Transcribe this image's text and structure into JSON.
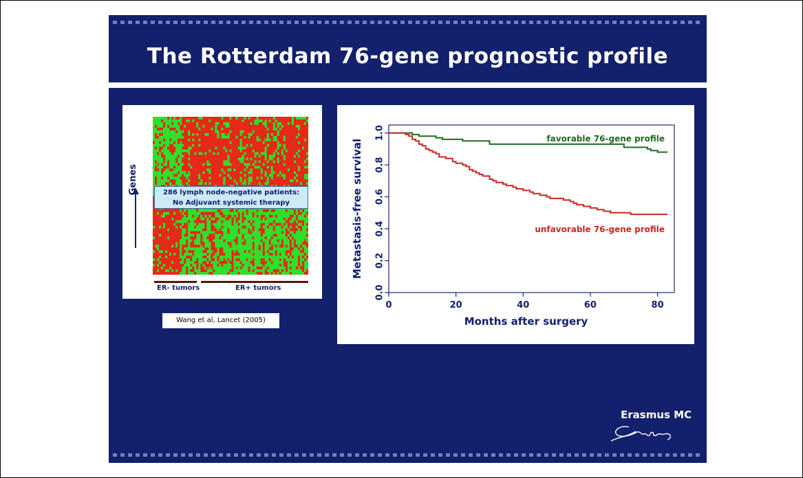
{
  "slide": {
    "title": "The Rotterdam 76-gene prognostic profile",
    "background_color": "#13206b"
  },
  "heatmap": {
    "genes_label": "Genes",
    "patients_line1": "286 lymph node-negative patients:",
    "patients_line2": "No Adjuvant systemic therapy",
    "er_neg_label": "ER- tumors",
    "er_pos_label": "ER+ tumors",
    "colors": {
      "high": "#e8281a",
      "low": "#2fe02a"
    }
  },
  "citation": "Wang et al, Lancet (2005)",
  "logo": {
    "text": "Erasmus MC",
    "signature_icon": "erasmus-signature-icon"
  },
  "chart_data": {
    "type": "line",
    "xlabel": "Months after surgery",
    "ylabel": "Metastasis-free survival",
    "xlim": [
      0,
      85
    ],
    "ylim": [
      0,
      1.05
    ],
    "xticks": [
      0,
      20,
      40,
      60,
      80
    ],
    "yticks": [
      0.0,
      0.2,
      0.4,
      0.6,
      0.8,
      1.0
    ],
    "ytick_labels": [
      "0.0",
      "0.2",
      "0.4",
      "0.6",
      "0.8",
      "1.0"
    ],
    "grid": false,
    "series": [
      {
        "name": "favorable 76-gene profile",
        "color": "#1f6b1f",
        "x": [
          0,
          6,
          7,
          9,
          14,
          16,
          20,
          22,
          28,
          30,
          50,
          60,
          68,
          70,
          72,
          77,
          78,
          80,
          83
        ],
        "y": [
          1.0,
          1.0,
          0.99,
          0.98,
          0.97,
          0.96,
          0.96,
          0.95,
          0.95,
          0.93,
          0.93,
          0.93,
          0.93,
          0.91,
          0.91,
          0.9,
          0.89,
          0.88,
          0.88
        ]
      },
      {
        "name": "unfavorable 76-gene profile",
        "color": "#c8281e",
        "x": [
          0,
          4,
          5,
          6,
          7,
          8,
          9,
          10,
          11,
          12,
          13,
          14,
          15,
          17,
          19,
          20,
          22,
          23,
          24,
          25,
          26,
          27,
          28,
          30,
          31,
          32,
          34,
          35,
          37,
          38,
          40,
          42,
          43,
          45,
          47,
          48,
          52,
          54,
          55,
          56,
          58,
          60,
          62,
          64,
          66,
          70,
          72,
          83
        ],
        "y": [
          1.0,
          1.0,
          0.99,
          0.98,
          0.96,
          0.95,
          0.93,
          0.92,
          0.9,
          0.89,
          0.88,
          0.87,
          0.85,
          0.84,
          0.82,
          0.81,
          0.8,
          0.79,
          0.77,
          0.76,
          0.75,
          0.74,
          0.73,
          0.71,
          0.7,
          0.69,
          0.68,
          0.67,
          0.66,
          0.65,
          0.64,
          0.63,
          0.62,
          0.61,
          0.6,
          0.59,
          0.58,
          0.57,
          0.56,
          0.55,
          0.54,
          0.53,
          0.52,
          0.51,
          0.5,
          0.5,
          0.49,
          0.49
        ]
      }
    ]
  }
}
